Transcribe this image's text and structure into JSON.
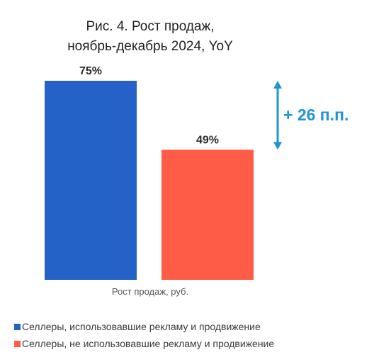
{
  "chart_data": {
    "type": "bar",
    "title": [
      "Рис. 4. Рост продаж,",
      "ноябрь-декабрь 2024, YoY"
    ],
    "xlabel": "Рост продаж, руб.",
    "ylabel": "",
    "ylim": [
      0,
      75
    ],
    "categories": [
      "Селлеры, использовавшие рекламу и продвижение",
      "Селлеры, не использовавшие рекламу и продвижение"
    ],
    "values": [
      75,
      49
    ],
    "data_labels": [
      "75%",
      "49%"
    ],
    "colors": [
      "#2462c7",
      "#ff5c47"
    ],
    "annotation": "+ 26 п.п.",
    "annotation_color": "#1f94d8",
    "legend_position": "bottom-left",
    "grid": false
  }
}
